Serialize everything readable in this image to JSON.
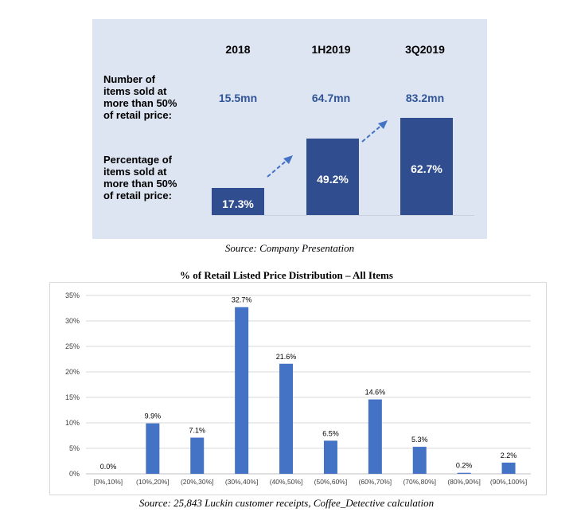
{
  "panel": {
    "columns": [
      "2018",
      "1H2019",
      "3Q2019"
    ],
    "row1_label_lines": [
      "Number of",
      "items sold at",
      "more than 50%",
      "of retail price:"
    ],
    "row2_label_lines": [
      "Percentage of",
      "items sold at",
      "more than 50%",
      "of retail price:"
    ],
    "items_sold": [
      "15.5mn",
      "64.7mn",
      "83.2mn"
    ],
    "percentages": [
      17.3,
      49.2,
      62.7
    ],
    "percentage_labels": [
      "17.3%",
      "49.2%",
      "62.7%"
    ],
    "source": "Source: Company Presentation",
    "colors": {
      "background": "#dde4f2",
      "bar": "#2f4d8f",
      "value_text": "#2f5597"
    }
  },
  "chart_data": {
    "type": "bar",
    "title": "% of Retail Listed Price Distribution – All Items",
    "categories": [
      "[0%,10%]",
      "(10%,20%]",
      "(20%,30%]",
      "(30%,40%]",
      "(40%,50%]",
      "(50%,60%]",
      "(60%,70%]",
      "(70%,80%]",
      "(80%,90%]",
      "(90%,100%]"
    ],
    "values": [
      0.0,
      9.9,
      7.1,
      32.7,
      21.6,
      6.5,
      14.6,
      5.3,
      0.2,
      2.2
    ],
    "value_labels": [
      "0.0%",
      "9.9%",
      "7.1%",
      "32.7%",
      "21.6%",
      "6.5%",
      "14.6%",
      "5.3%",
      "0.2%",
      "2.2%"
    ],
    "yticks": [
      "0%",
      "5%",
      "10%",
      "15%",
      "20%",
      "25%",
      "30%",
      "35%"
    ],
    "ylim": [
      0,
      35
    ],
    "grid": true,
    "bar_color": "#4472c4"
  },
  "source2": "Source: 25,843 Luckin customer receipts, Coffee_Detective calculation"
}
